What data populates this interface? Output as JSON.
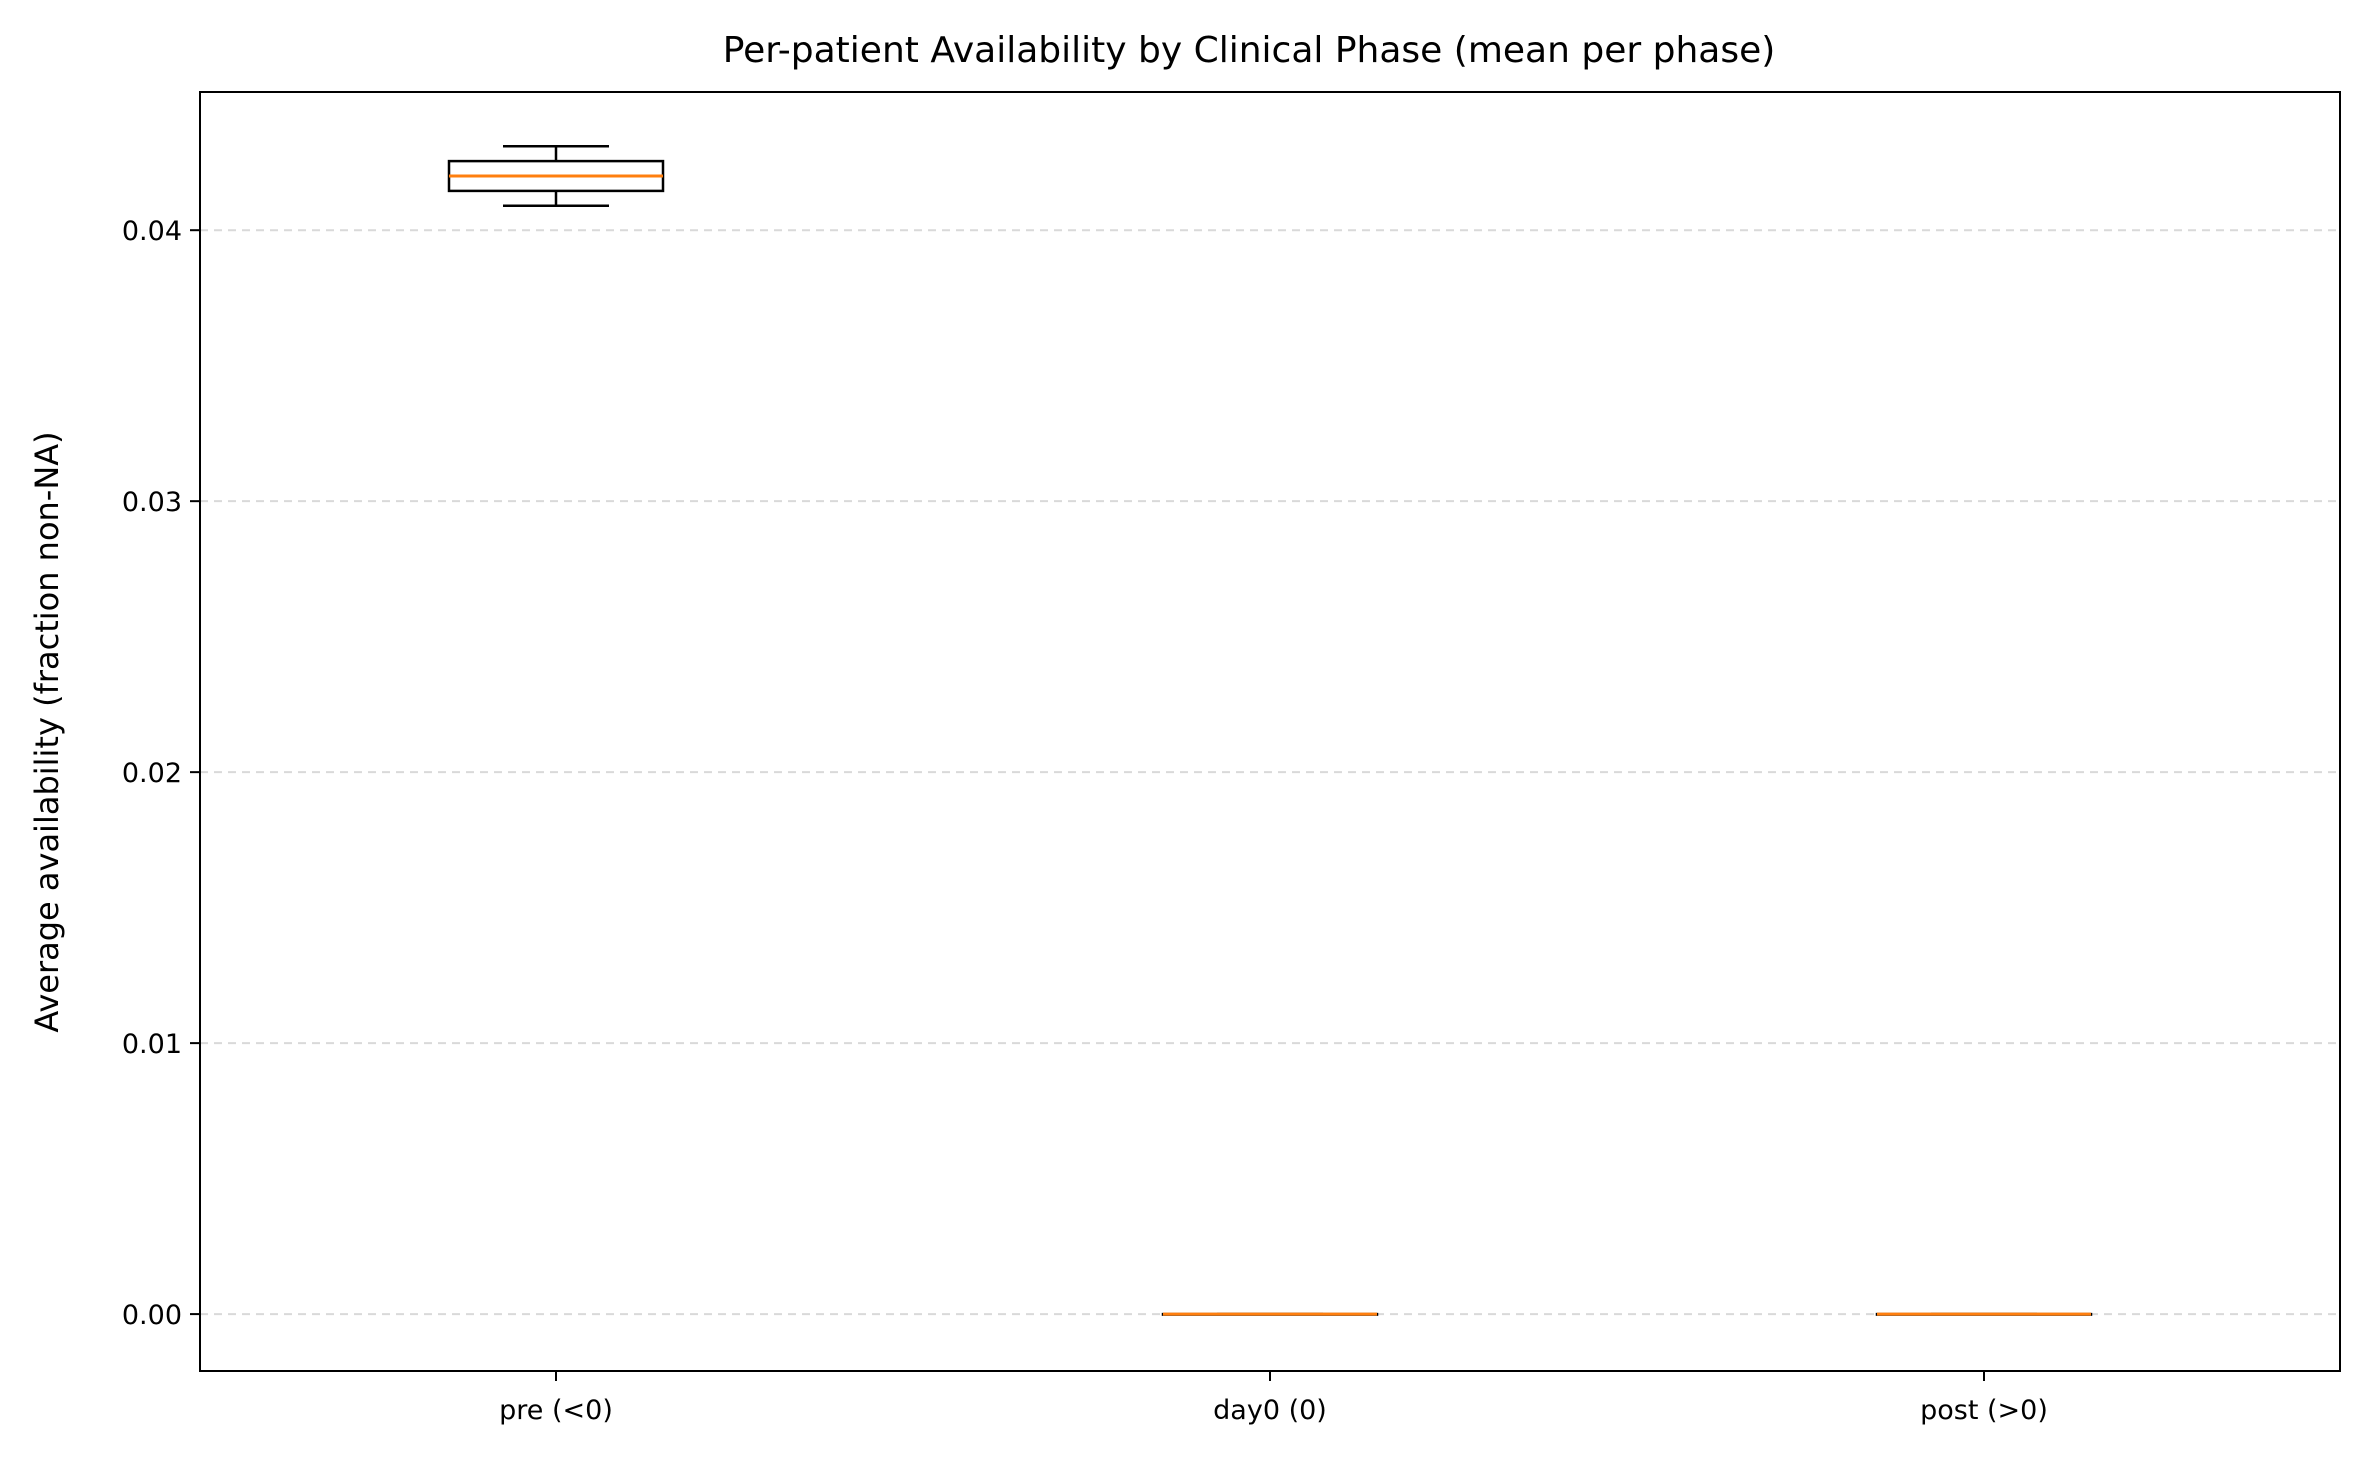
{
  "chart_data": {
    "type": "box",
    "title": "Per-patient Availability by Clinical Phase (mean per phase)",
    "xlabel": "",
    "ylabel": "Average availability (fraction non-NA)",
    "categories": [
      "pre (<0)",
      "day0 (0)",
      "post (>0)"
    ],
    "boxes": [
      {
        "category": "pre (<0)",
        "whisker_low": 0.0409,
        "q1": 0.04145,
        "median": 0.042,
        "q3": 0.04255,
        "whisker_high": 0.0431
      },
      {
        "category": "day0 (0)",
        "whisker_low": 0.0,
        "q1": 0.0,
        "median": 0.0,
        "q3": 0.0,
        "whisker_high": 0.0
      },
      {
        "category": "post (>0)",
        "whisker_low": 0.0,
        "q1": 0.0,
        "median": 0.0,
        "q3": 0.0,
        "whisker_high": 0.0
      }
    ],
    "ylim": [
      -0.0021,
      0.0451
    ],
    "yticks": [
      0.0,
      0.01,
      0.02,
      0.03,
      0.04
    ],
    "ytick_labels": [
      "0.00",
      "0.01",
      "0.02",
      "0.03",
      "0.04"
    ],
    "grid": "y-dashed",
    "colors": {
      "box": "#000000",
      "median": "#ff7f0e",
      "grid": "#d9d9d9"
    }
  }
}
